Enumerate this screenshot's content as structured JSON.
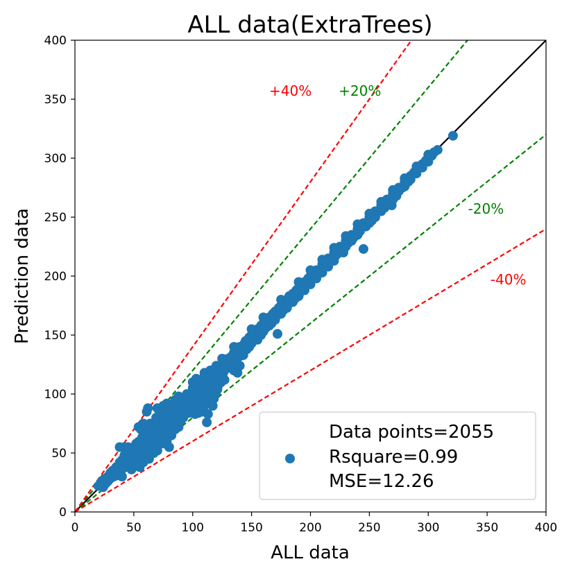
{
  "chart_data": {
    "type": "scatter",
    "title": "ALL data(ExtraTrees)",
    "xlabel": "ALL data",
    "ylabel": "Prediction data",
    "xlim": [
      0,
      400
    ],
    "ylim": [
      0,
      400
    ],
    "xticks": [
      "0",
      "50",
      "100",
      "150",
      "200",
      "250",
      "300",
      "350",
      "400"
    ],
    "yticks": [
      "0",
      "50",
      "100",
      "150",
      "200",
      "250",
      "300",
      "350",
      "400"
    ],
    "grid": false,
    "legend": {
      "position": "bottom-right",
      "lines": [
        "Data points=2055",
        "Rsquare=0.99",
        "MSE=12.26"
      ]
    },
    "series_color": "#1f77b4",
    "reference_lines": [
      {
        "slope": 1.0,
        "color": "#000000",
        "style": "solid"
      },
      {
        "slope": 1.2,
        "color": "#008000",
        "style": "dashed",
        "label": "+20%",
        "label_at": [
          242,
          353
        ]
      },
      {
        "slope": 0.8,
        "color": "#008000",
        "style": "dashed",
        "label": "-20%",
        "label_at": [
          349,
          253
        ]
      },
      {
        "slope": 1.4,
        "color": "#ff0000",
        "style": "dashed",
        "label": "+40%",
        "label_at": [
          183,
          353
        ]
      },
      {
        "slope": 0.6,
        "color": "#ff0000",
        "style": "dashed",
        "label": "-40%",
        "label_at": [
          368,
          193
        ]
      }
    ],
    "points": [
      [
        20,
        22
      ],
      [
        22,
        25
      ],
      [
        24,
        21
      ],
      [
        25,
        28
      ],
      [
        26,
        24
      ],
      [
        28,
        30
      ],
      [
        28,
        26
      ],
      [
        30,
        33
      ],
      [
        30,
        29
      ],
      [
        32,
        35
      ],
      [
        33,
        30
      ],
      [
        35,
        38
      ],
      [
        35,
        34
      ],
      [
        36,
        31
      ],
      [
        38,
        42
      ],
      [
        38,
        36
      ],
      [
        38,
        55
      ],
      [
        40,
        30
      ],
      [
        40,
        44
      ],
      [
        40,
        40
      ],
      [
        41,
        37
      ],
      [
        42,
        48
      ],
      [
        42,
        55
      ],
      [
        43,
        40
      ],
      [
        45,
        50
      ],
      [
        45,
        45
      ],
      [
        45,
        55
      ],
      [
        46,
        42
      ],
      [
        47,
        52
      ],
      [
        48,
        47
      ],
      [
        48,
        36
      ],
      [
        50,
        55
      ],
      [
        50,
        50
      ],
      [
        50,
        45
      ],
      [
        52,
        58
      ],
      [
        52,
        52
      ],
      [
        53,
        48
      ],
      [
        54,
        72
      ],
      [
        55,
        60
      ],
      [
        55,
        55
      ],
      [
        55,
        50
      ],
      [
        56,
        45
      ],
      [
        57,
        63
      ],
      [
        58,
        58
      ],
      [
        58,
        52
      ],
      [
        58,
        75
      ],
      [
        60,
        65
      ],
      [
        60,
        60
      ],
      [
        60,
        55
      ],
      [
        60,
        50
      ],
      [
        61,
        85
      ],
      [
        62,
        88
      ],
      [
        62,
        68
      ],
      [
        62,
        62
      ],
      [
        62,
        56
      ],
      [
        63,
        45
      ],
      [
        64,
        75
      ],
      [
        65,
        70
      ],
      [
        65,
        65
      ],
      [
        65,
        58
      ],
      [
        66,
        52
      ],
      [
        67,
        72
      ],
      [
        68,
        68
      ],
      [
        68,
        62
      ],
      [
        69,
        80
      ],
      [
        70,
        75
      ],
      [
        70,
        70
      ],
      [
        70,
        63
      ],
      [
        71,
        57
      ],
      [
        72,
        78
      ],
      [
        73,
        72
      ],
      [
        74,
        66
      ],
      [
        75,
        80
      ],
      [
        75,
        75
      ],
      [
        76,
        70
      ],
      [
        77,
        64
      ],
      [
        78,
        84
      ],
      [
        78,
        78
      ],
      [
        79,
        73
      ],
      [
        80,
        85
      ],
      [
        80,
        80
      ],
      [
        80,
        90
      ],
      [
        81,
        75
      ],
      [
        82,
        70
      ],
      [
        83,
        88
      ],
      [
        84,
        83
      ],
      [
        85,
        78
      ],
      [
        85,
        92
      ],
      [
        86,
        86
      ],
      [
        87,
        80
      ],
      [
        88,
        91
      ],
      [
        88,
        95
      ],
      [
        89,
        84
      ],
      [
        90,
        90
      ],
      [
        90,
        95
      ],
      [
        91,
        86
      ],
      [
        92,
        88
      ],
      [
        93,
        97
      ],
      [
        94,
        92
      ],
      [
        95,
        100
      ],
      [
        95,
        90
      ],
      [
        96,
        86
      ],
      [
        97,
        98
      ],
      [
        98,
        95
      ],
      [
        99,
        88
      ],
      [
        100,
        100
      ],
      [
        100,
        105
      ],
      [
        101,
        95
      ],
      [
        102,
        110
      ],
      [
        103,
        98
      ],
      [
        104,
        90
      ],
      [
        105,
        105
      ],
      [
        105,
        112
      ],
      [
        106,
        100
      ],
      [
        107,
        95
      ],
      [
        108,
        110
      ],
      [
        109,
        103
      ],
      [
        110,
        108
      ],
      [
        110,
        115
      ],
      [
        111,
        100
      ],
      [
        112,
        95
      ],
      [
        113,
        115
      ],
      [
        114,
        106
      ],
      [
        115,
        110
      ],
      [
        115,
        120
      ],
      [
        116,
        103
      ],
      [
        117,
        100
      ],
      [
        118,
        118
      ],
      [
        118,
        108
      ],
      [
        120,
        120
      ],
      [
        120,
        112
      ],
      [
        121,
        104
      ],
      [
        122,
        123
      ],
      [
        123,
        115
      ],
      [
        124,
        110
      ],
      [
        125,
        125
      ],
      [
        126,
        118
      ],
      [
        127,
        112
      ],
      [
        128,
        128
      ],
      [
        130,
        130
      ],
      [
        130,
        122
      ],
      [
        132,
        125
      ],
      [
        133,
        132
      ],
      [
        135,
        135
      ],
      [
        136,
        128
      ],
      [
        138,
        138
      ],
      [
        140,
        140
      ],
      [
        140,
        132
      ],
      [
        142,
        136
      ],
      [
        144,
        143
      ],
      [
        145,
        145
      ],
      [
        146,
        138
      ],
      [
        148,
        148
      ],
      [
        150,
        150
      ],
      [
        152,
        146
      ],
      [
        153,
        153
      ],
      [
        155,
        155
      ],
      [
        157,
        150
      ],
      [
        158,
        158
      ],
      [
        160,
        160
      ],
      [
        162,
        156
      ],
      [
        163,
        163
      ],
      [
        165,
        165
      ],
      [
        167,
        160
      ],
      [
        168,
        168
      ],
      [
        170,
        170
      ],
      [
        172,
        167
      ],
      [
        173,
        173
      ],
      [
        175,
        175
      ],
      [
        177,
        171
      ],
      [
        178,
        178
      ],
      [
        180,
        180
      ],
      [
        182,
        177
      ],
      [
        183,
        183
      ],
      [
        185,
        185
      ],
      [
        187,
        181
      ],
      [
        188,
        188
      ],
      [
        190,
        190
      ],
      [
        192,
        187
      ],
      [
        193,
        193
      ],
      [
        195,
        195
      ],
      [
        198,
        198
      ],
      [
        200,
        200
      ],
      [
        202,
        198
      ],
      [
        205,
        205
      ],
      [
        207,
        202
      ],
      [
        210,
        210
      ],
      [
        212,
        208
      ],
      [
        215,
        215
      ],
      [
        217,
        212
      ],
      [
        220,
        220
      ],
      [
        222,
        218
      ],
      [
        225,
        225
      ],
      [
        227,
        222
      ],
      [
        230,
        230
      ],
      [
        232,
        228
      ],
      [
        235,
        235
      ],
      [
        237,
        233
      ],
      [
        240,
        240
      ],
      [
        242,
        238
      ],
      [
        245,
        245
      ],
      [
        247,
        242
      ],
      [
        250,
        250
      ],
      [
        252,
        247
      ],
      [
        255,
        255
      ],
      [
        258,
        255
      ],
      [
        260,
        260
      ],
      [
        263,
        258
      ],
      [
        265,
        265
      ],
      [
        268,
        265
      ],
      [
        270,
        270
      ],
      [
        273,
        268
      ],
      [
        275,
        275
      ],
      [
        278,
        275
      ],
      [
        280,
        280
      ],
      [
        283,
        280
      ],
      [
        285,
        285
      ],
      [
        288,
        288
      ],
      [
        290,
        290
      ],
      [
        293,
        292
      ],
      [
        295,
        295
      ],
      [
        298,
        298
      ],
      [
        300,
        300
      ],
      [
        303,
        302
      ],
      [
        305,
        305
      ],
      [
        308,
        307
      ],
      [
        321,
        319
      ],
      [
        52,
        40
      ],
      [
        53,
        44
      ],
      [
        55,
        38
      ],
      [
        56,
        70
      ],
      [
        57,
        45
      ],
      [
        58,
        42
      ],
      [
        59,
        48
      ],
      [
        60,
        52
      ],
      [
        61,
        46
      ],
      [
        62,
        58
      ],
      [
        63,
        48
      ],
      [
        64,
        50
      ],
      [
        65,
        62
      ],
      [
        66,
        56
      ],
      [
        67,
        50
      ],
      [
        70,
        52
      ],
      [
        72,
        60
      ],
      [
        75,
        58
      ],
      [
        76,
        65
      ],
      [
        78,
        60
      ],
      [
        80,
        55
      ],
      [
        82,
        65
      ],
      [
        85,
        70
      ],
      [
        88,
        72
      ],
      [
        90,
        78
      ],
      [
        92,
        80
      ],
      [
        95,
        88
      ],
      [
        97,
        84
      ],
      [
        100,
        90
      ],
      [
        102,
        83
      ],
      [
        105,
        84
      ],
      [
        108,
        85
      ],
      [
        110,
        90
      ],
      [
        112,
        76
      ],
      [
        113,
        83
      ],
      [
        115,
        98
      ],
      [
        117,
        90
      ],
      [
        118,
        96
      ],
      [
        120,
        102
      ],
      [
        122,
        108
      ],
      [
        124,
        110
      ],
      [
        125,
        115
      ],
      [
        128,
        122
      ],
      [
        130,
        125
      ],
      [
        133,
        128
      ],
      [
        135,
        120
      ],
      [
        138,
        118
      ],
      [
        140,
        124
      ],
      [
        143,
        133
      ],
      [
        145,
        138
      ],
      [
        148,
        140
      ],
      [
        150,
        143
      ],
      [
        155,
        146
      ],
      [
        158,
        150
      ],
      [
        160,
        153
      ],
      [
        165,
        158
      ],
      [
        170,
        163
      ],
      [
        172,
        151
      ],
      [
        175,
        168
      ],
      [
        180,
        173
      ],
      [
        182,
        183
      ],
      [
        185,
        178
      ],
      [
        190,
        183
      ],
      [
        195,
        188
      ],
      [
        200,
        193
      ],
      [
        205,
        198
      ],
      [
        210,
        203
      ],
      [
        215,
        208
      ],
      [
        220,
        213
      ],
      [
        225,
        220
      ],
      [
        228,
        220
      ],
      [
        230,
        225
      ],
      [
        235,
        230
      ],
      [
        240,
        235
      ],
      [
        245,
        223
      ],
      [
        250,
        245
      ],
      [
        255,
        250
      ],
      [
        260,
        255
      ],
      [
        265,
        260
      ],
      [
        269,
        260
      ],
      [
        270,
        265
      ],
      [
        275,
        272
      ],
      [
        280,
        276
      ],
      [
        285,
        282
      ],
      [
        290,
        287
      ],
      [
        295,
        292
      ],
      [
        300,
        297
      ],
      [
        70,
        88
      ],
      [
        72,
        85
      ],
      [
        75,
        90
      ],
      [
        78,
        92
      ],
      [
        80,
        88
      ],
      [
        85,
        95
      ],
      [
        88,
        98
      ],
      [
        90,
        92
      ],
      [
        100,
        110
      ],
      [
        103,
        113
      ],
      [
        110,
        118
      ],
      [
        115,
        120
      ],
      [
        120,
        124
      ],
      [
        125,
        130
      ],
      [
        135,
        140
      ],
      [
        150,
        155
      ],
      [
        160,
        165
      ],
      [
        175,
        180
      ],
      [
        190,
        195
      ],
      [
        200,
        205
      ],
      [
        210,
        214
      ],
      [
        220,
        224
      ],
      [
        230,
        234
      ],
      [
        240,
        244
      ],
      [
        250,
        253
      ],
      [
        260,
        263
      ],
      [
        270,
        273
      ],
      [
        280,
        283
      ],
      [
        290,
        293
      ],
      [
        300,
        303
      ]
    ]
  }
}
